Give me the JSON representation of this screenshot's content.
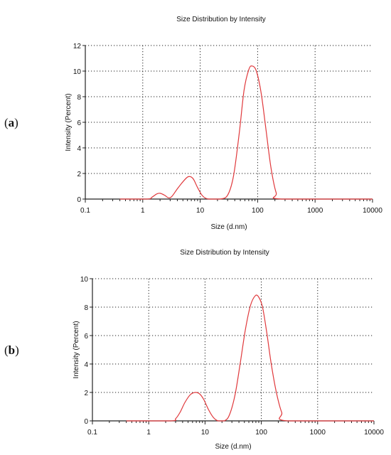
{
  "chart_data": [
    {
      "type": "line",
      "panel_label": "a",
      "title": "Size Distribution by Intensity",
      "xlabel": "Size (d.nm)",
      "ylabel": "Intensity (Percent)",
      "x_scale": "log",
      "xlim": [
        0.1,
        10000
      ],
      "ylim": [
        0,
        12
      ],
      "x_ticks": [
        "0.1",
        "1",
        "10",
        "100",
        "1000",
        "10000"
      ],
      "y_ticks": [
        "0",
        "2",
        "4",
        "6",
        "8",
        "10",
        "12"
      ],
      "grid": true,
      "line_color": "#e0393c",
      "series": [
        {
          "points": [
            [
              0.4,
              0
            ],
            [
              1.2,
              0
            ],
            [
              1.45,
              0.15
            ],
            [
              1.75,
              0.4
            ],
            [
              2.0,
              0.45
            ],
            [
              2.4,
              0.3
            ],
            [
              2.8,
              0.1
            ],
            [
              3.2,
              0.2
            ],
            [
              4.0,
              0.8
            ],
            [
              5.0,
              1.35
            ],
            [
              6.2,
              1.75
            ],
            [
              7.5,
              1.6
            ],
            [
              9.0,
              0.9
            ],
            [
              11.0,
              0.25
            ],
            [
              14.0,
              0
            ],
            [
              22.0,
              0
            ],
            [
              30.0,
              0.3
            ],
            [
              38.0,
              1.8
            ],
            [
              48.0,
              5.2
            ],
            [
              58.0,
              8.5
            ],
            [
              70.0,
              10.1
            ],
            [
              80.0,
              10.4
            ],
            [
              95.0,
              10.0
            ],
            [
              115.0,
              8.3
            ],
            [
              140.0,
              5.4
            ],
            [
              170.0,
              2.5
            ],
            [
              210.0,
              0.5
            ],
            [
              260.0,
              0
            ],
            [
              10000,
              0
            ]
          ]
        }
      ]
    },
    {
      "type": "line",
      "panel_label": "b",
      "title": "Size Distribution by Intensity",
      "xlabel": "Size (d.nm)",
      "ylabel": "Intensity (Percent)",
      "x_scale": "log",
      "xlim": [
        0.1,
        10000
      ],
      "ylim": [
        0,
        10
      ],
      "x_ticks": [
        "0.1",
        "1",
        "10",
        "100",
        "1000",
        "10000"
      ],
      "y_ticks": [
        "0",
        "2",
        "4",
        "6",
        "8",
        "10"
      ],
      "grid": true,
      "line_color": "#e0393c",
      "series": [
        {
          "points": [
            [
              0.4,
              0
            ],
            [
              2.5,
              0
            ],
            [
              3.0,
              0.15
            ],
            [
              3.6,
              0.6
            ],
            [
              4.4,
              1.3
            ],
            [
              5.5,
              1.85
            ],
            [
              6.7,
              2.0
            ],
            [
              8.0,
              1.9
            ],
            [
              9.5,
              1.5
            ],
            [
              11.5,
              0.8
            ],
            [
              14.0,
              0.25
            ],
            [
              17.0,
              0
            ],
            [
              22.0,
              0
            ],
            [
              27.0,
              0.4
            ],
            [
              34.0,
              1.8
            ],
            [
              42.0,
              4.0
            ],
            [
              52.0,
              6.4
            ],
            [
              64.0,
              8.1
            ],
            [
              78.0,
              8.8
            ],
            [
              90.0,
              8.7
            ],
            [
              105.0,
              8.0
            ],
            [
              125.0,
              6.2
            ],
            [
              150.0,
              4.0
            ],
            [
              185.0,
              2.0
            ],
            [
              230.0,
              0.6
            ],
            [
              290.0,
              0
            ],
            [
              10000,
              0
            ]
          ]
        }
      ]
    }
  ]
}
